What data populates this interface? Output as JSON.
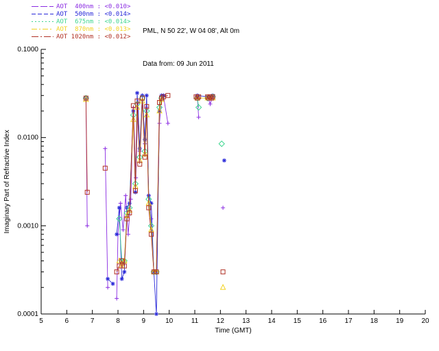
{
  "header": {
    "line1": "PML, N 50 22', W 04 08', Alt 0m",
    "line2": "Data from: 09 Jun 2011"
  },
  "chart_data": {
    "type": "line",
    "title": "",
    "xlabel": "Time (GMT)",
    "ylabel": "Imaginary Part of Refractive Index",
    "xlim": [
      5,
      20
    ],
    "ylim": [
      0.0001,
      0.1
    ],
    "yscale": "log",
    "grid": false,
    "legend_position": "top-left",
    "xticks": [
      5,
      6,
      7,
      8,
      9,
      10,
      11,
      12,
      13,
      14,
      15,
      16,
      17,
      18,
      19,
      20
    ],
    "yticks": [
      0.0001,
      0.001,
      0.01,
      0.1
    ],
    "ytick_labels": [
      "0.0001",
      "0.0010",
      "0.0100",
      "0.1000"
    ],
    "axis_color": "#000000",
    "series": [
      {
        "name": "AOT 400nm",
        "legend_label": "AOT  400nm : <0.010>",
        "color": "#8a2be2",
        "marker": "plus",
        "linestyle": "10,3",
        "points": [
          [
            6.75,
            0.028
          ],
          [
            6.8,
            0.001
          ],
          null,
          [
            7.5,
            0.0075
          ],
          [
            7.6,
            0.0002
          ],
          null,
          [
            7.95,
            0.00015
          ],
          [
            8.0,
            0.0008
          ],
          [
            8.1,
            0.0018
          ],
          [
            8.2,
            0.0009
          ],
          [
            8.3,
            0.0022
          ],
          [
            8.4,
            0.0008
          ],
          [
            8.5,
            0.002
          ],
          [
            8.6,
            0.022
          ],
          [
            8.7,
            0.0035
          ],
          [
            8.78,
            0.025
          ],
          [
            8.85,
            0.007
          ],
          [
            8.95,
            0.03
          ],
          [
            9.05,
            0.0085
          ],
          [
            9.12,
            0.022
          ],
          [
            9.2,
            0.0022
          ],
          [
            9.3,
            0.0012
          ],
          [
            9.4,
            0.0003
          ],
          [
            9.5,
            0.0003
          ],
          [
            9.62,
            0.0145
          ],
          [
            9.7,
            0.028
          ],
          [
            9.78,
            0.029
          ],
          [
            9.95,
            0.0145
          ],
          null,
          [
            11.1,
            0.029
          ],
          [
            11.15,
            0.017
          ],
          null,
          [
            11.5,
            0.029
          ],
          [
            11.6,
            0.024
          ],
          [
            11.7,
            0.029
          ],
          null,
          [
            12.1,
            0.0016
          ]
        ]
      },
      {
        "name": "AOT 500nm",
        "legend_label": "AOT  500nm : <0.014>",
        "color": "#2727d8",
        "marker": "asterisk",
        "linestyle": "6,3",
        "points": [
          [
            6.75,
            0.028
          ],
          null,
          [
            7.6,
            0.00025
          ],
          [
            7.8,
            0.00022
          ],
          null,
          [
            7.95,
            0.0008
          ],
          [
            8.05,
            0.0016
          ],
          [
            8.15,
            0.00025
          ],
          [
            8.25,
            0.0003
          ],
          [
            8.35,
            0.0016
          ],
          [
            8.45,
            0.0018
          ],
          [
            8.6,
            0.02
          ],
          [
            8.68,
            0.0024
          ],
          [
            8.75,
            0.032
          ],
          [
            8.85,
            0.0075
          ],
          [
            8.95,
            0.03
          ],
          [
            9.05,
            0.0095
          ],
          [
            9.12,
            0.03
          ],
          [
            9.2,
            0.0022
          ],
          [
            9.3,
            0.0018
          ],
          [
            9.4,
            0.0003
          ],
          [
            9.5,
            0.0001
          ],
          [
            9.62,
            0.02
          ],
          [
            9.7,
            0.03
          ],
          [
            9.78,
            0.03
          ],
          null,
          [
            11.1,
            0.03
          ],
          [
            11.5,
            0.029
          ],
          [
            11.7,
            0.03
          ],
          null,
          [
            12.15,
            0.0055
          ]
        ]
      },
      {
        "name": "AOT 675nm",
        "legend_label": "AOT  675nm : <0.014>",
        "color": "#3fd690",
        "marker": "diamond",
        "linestyle": "2,3",
        "points": [
          [
            6.75,
            0.028
          ],
          null,
          [
            8.05,
            0.0012
          ],
          [
            8.15,
            0.0004
          ],
          [
            8.25,
            0.0004
          ],
          [
            8.35,
            0.0014
          ],
          [
            8.45,
            0.0016
          ],
          [
            8.6,
            0.018
          ],
          [
            8.68,
            0.003
          ],
          [
            8.75,
            0.024
          ],
          [
            8.85,
            0.006
          ],
          [
            8.95,
            0.028
          ],
          [
            9.05,
            0.007
          ],
          [
            9.12,
            0.02
          ],
          [
            9.2,
            0.002
          ],
          [
            9.3,
            0.001
          ],
          [
            9.4,
            0.0003
          ],
          [
            9.5,
            0.0003
          ],
          [
            9.62,
            0.022
          ],
          [
            9.7,
            0.028
          ],
          null,
          [
            11.1,
            0.028
          ],
          [
            11.15,
            0.022
          ],
          null,
          [
            11.5,
            0.028
          ],
          [
            11.7,
            0.029
          ],
          null,
          [
            12.05,
            0.0085
          ]
        ]
      },
      {
        "name": "AOT 870nm",
        "legend_label": "AOT  870nm : <0.013>",
        "color": "#f2d21f",
        "marker": "triangle",
        "linestyle": "8,3,2,3",
        "points": [
          [
            6.75,
            0.027
          ],
          null,
          [
            8.05,
            0.0004
          ],
          [
            8.15,
            0.00035
          ],
          [
            8.25,
            0.0004
          ],
          [
            8.35,
            0.0013
          ],
          [
            8.45,
            0.0015
          ],
          [
            8.6,
            0.016
          ],
          [
            8.68,
            0.0028
          ],
          [
            8.75,
            0.022
          ],
          [
            8.85,
            0.0055
          ],
          [
            8.95,
            0.026
          ],
          [
            9.05,
            0.0065
          ],
          [
            9.12,
            0.018
          ],
          [
            9.2,
            0.0018
          ],
          [
            9.3,
            0.0009
          ],
          [
            9.4,
            0.0003
          ],
          [
            9.5,
            0.0003
          ],
          [
            9.62,
            0.02
          ],
          [
            9.7,
            0.027
          ],
          null,
          [
            11.1,
            0.028
          ],
          [
            11.5,
            0.028
          ],
          [
            11.7,
            0.028
          ],
          null,
          [
            12.1,
            0.0002
          ]
        ]
      },
      {
        "name": "AOT 1020nm",
        "legend_label": "AOT 1020nm : <0.012>",
        "color": "#b03024",
        "marker": "square",
        "linestyle": "10,3,2,3",
        "points": [
          [
            6.75,
            0.028
          ],
          [
            6.8,
            0.0024
          ],
          null,
          [
            7.5,
            0.0045
          ],
          null,
          [
            7.95,
            0.0003
          ],
          [
            8.05,
            0.00035
          ],
          [
            8.15,
            0.0004
          ],
          [
            8.25,
            0.00035
          ],
          [
            8.35,
            0.0012
          ],
          [
            8.45,
            0.0014
          ],
          [
            8.6,
            0.023
          ],
          [
            8.68,
            0.0025
          ],
          [
            8.75,
            0.026
          ],
          [
            8.85,
            0.005
          ],
          [
            8.95,
            0.028
          ],
          [
            9.05,
            0.006
          ],
          [
            9.12,
            0.0225
          ],
          [
            9.2,
            0.0016
          ],
          [
            9.3,
            0.0008
          ],
          [
            9.4,
            0.0003
          ],
          [
            9.5,
            0.0003
          ],
          [
            9.62,
            0.025
          ],
          [
            9.7,
            0.028
          ],
          [
            9.78,
            0.029
          ],
          [
            9.95,
            0.03
          ],
          null,
          [
            11.05,
            0.029
          ],
          [
            11.1,
            0.028
          ],
          [
            11.15,
            0.029
          ],
          null,
          [
            11.5,
            0.029
          ],
          [
            11.55,
            0.028
          ],
          [
            11.6,
            0.029
          ],
          [
            11.65,
            0.028
          ],
          [
            11.7,
            0.029
          ],
          null,
          [
            12.1,
            0.0003
          ]
        ]
      }
    ]
  }
}
